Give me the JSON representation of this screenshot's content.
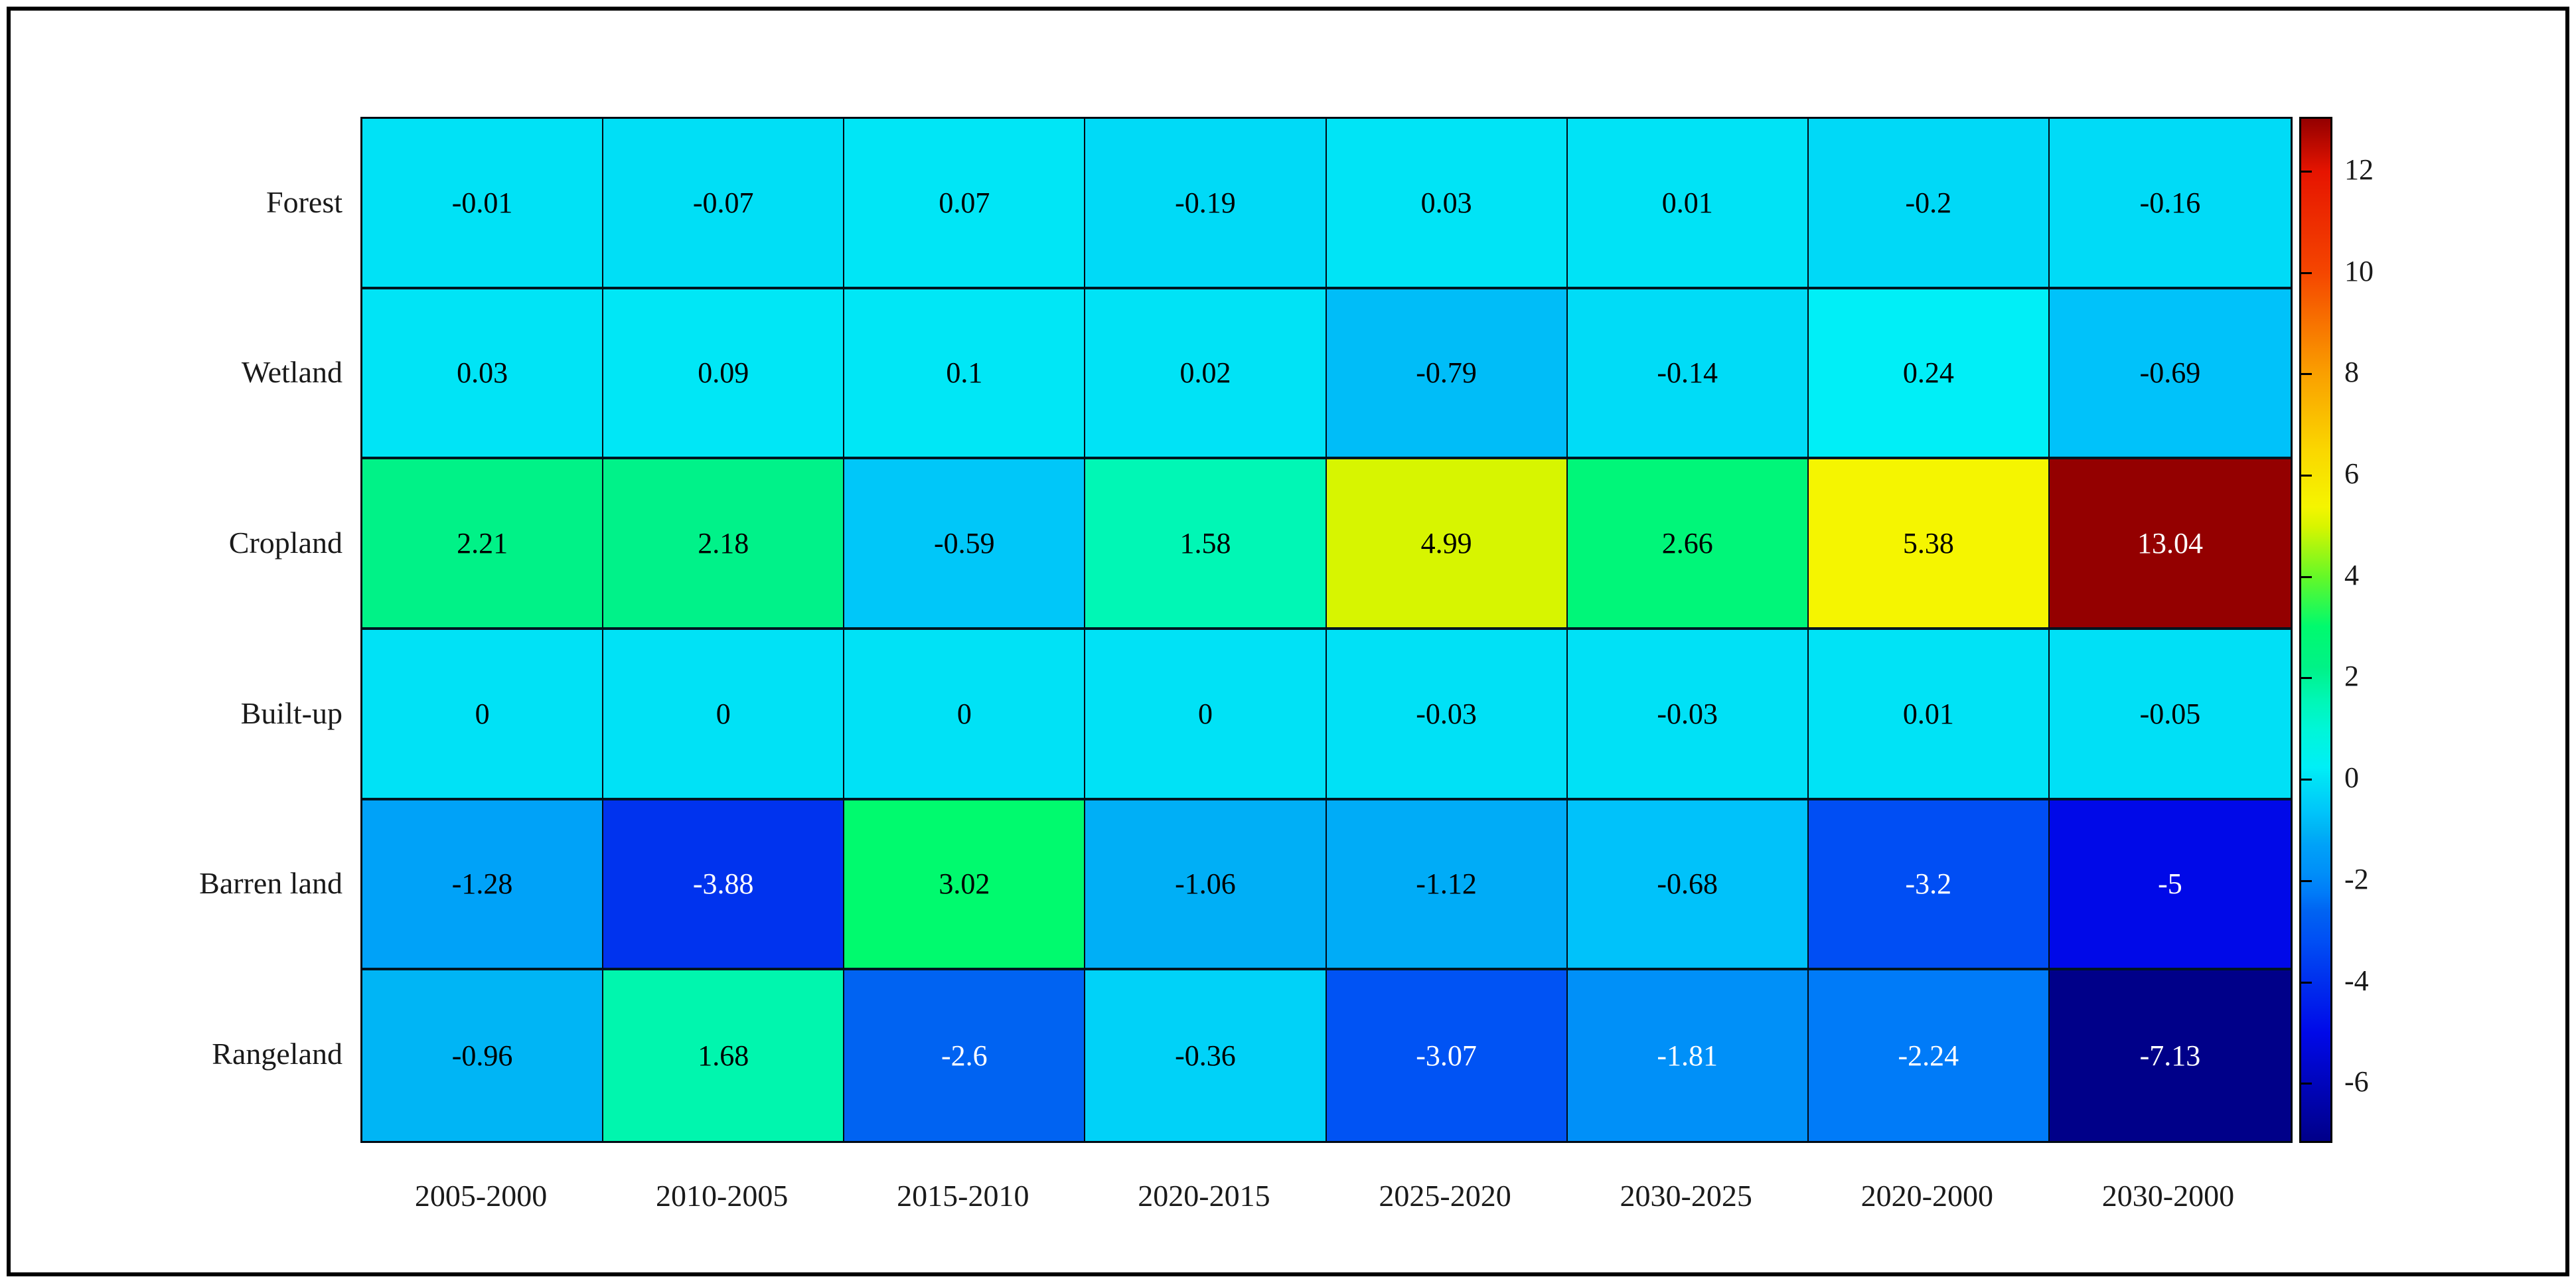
{
  "chart_data": {
    "type": "heatmap",
    "title": "",
    "rows": [
      "Forest",
      "Wetland",
      "Cropland",
      "Built-up",
      "Barren land",
      "Rangeland"
    ],
    "columns": [
      "2005-2000",
      "2010-2005",
      "2015-2010",
      "2020-2015",
      "2025-2020",
      "2030-2025",
      "2020-2000",
      "2030-2000"
    ],
    "values": [
      [
        -0.01,
        -0.07,
        0.07,
        -0.19,
        0.03,
        0.01,
        -0.2,
        -0.16
      ],
      [
        0.03,
        0.09,
        0.1,
        0.02,
        -0.79,
        -0.14,
        0.24,
        -0.69
      ],
      [
        2.21,
        2.18,
        -0.59,
        1.58,
        4.99,
        2.66,
        5.38,
        13.04
      ],
      [
        0,
        0,
        0,
        0,
        -0.03,
        -0.03,
        0.01,
        -0.05
      ],
      [
        -1.28,
        -3.88,
        3.02,
        -1.06,
        -1.12,
        -0.68,
        -3.2,
        -5
      ],
      [
        -0.96,
        1.68,
        -2.6,
        -0.36,
        -3.07,
        -1.81,
        -2.24,
        -7.13
      ]
    ],
    "grid": true,
    "legend_position": "right",
    "colorbar": {
      "vmin": -7.13,
      "vmax": 13.04,
      "ticks": [
        12,
        10,
        8,
        6,
        4,
        2,
        0,
        -2,
        -4,
        -6
      ],
      "colormap_anchors": [
        [
          -7.13,
          "#000089"
        ],
        [
          -5.0,
          "#0009E8"
        ],
        [
          -3.88,
          "#0033EE"
        ],
        [
          -3.2,
          "#004EF4"
        ],
        [
          -2.6,
          "#0063F2"
        ],
        [
          -2.24,
          "#007BF8"
        ],
        [
          -1.81,
          "#0090F8"
        ],
        [
          -1.28,
          "#00A2F8"
        ],
        [
          -0.96,
          "#00B5F5"
        ],
        [
          -0.69,
          "#00C2FA"
        ],
        [
          -0.36,
          "#00D2F8"
        ],
        [
          0.0,
          "#00E2F6"
        ],
        [
          0.24,
          "#00EFF7"
        ],
        [
          1.0,
          "#00F6D7"
        ],
        [
          1.58,
          "#00F7B5"
        ],
        [
          2.21,
          "#00F287"
        ],
        [
          3.02,
          "#00FA6E"
        ],
        [
          4.0,
          "#64F828"
        ],
        [
          4.99,
          "#D7F500"
        ],
        [
          5.38,
          "#F5F500"
        ],
        [
          6.5,
          "#FAD700"
        ],
        [
          8.0,
          "#FAA000"
        ],
        [
          10.0,
          "#F54600"
        ],
        [
          12.0,
          "#E61400"
        ],
        [
          13.04,
          "#940000"
        ]
      ],
      "text_color_dark": "#000000",
      "text_color_light": "#FFFFFF"
    }
  }
}
